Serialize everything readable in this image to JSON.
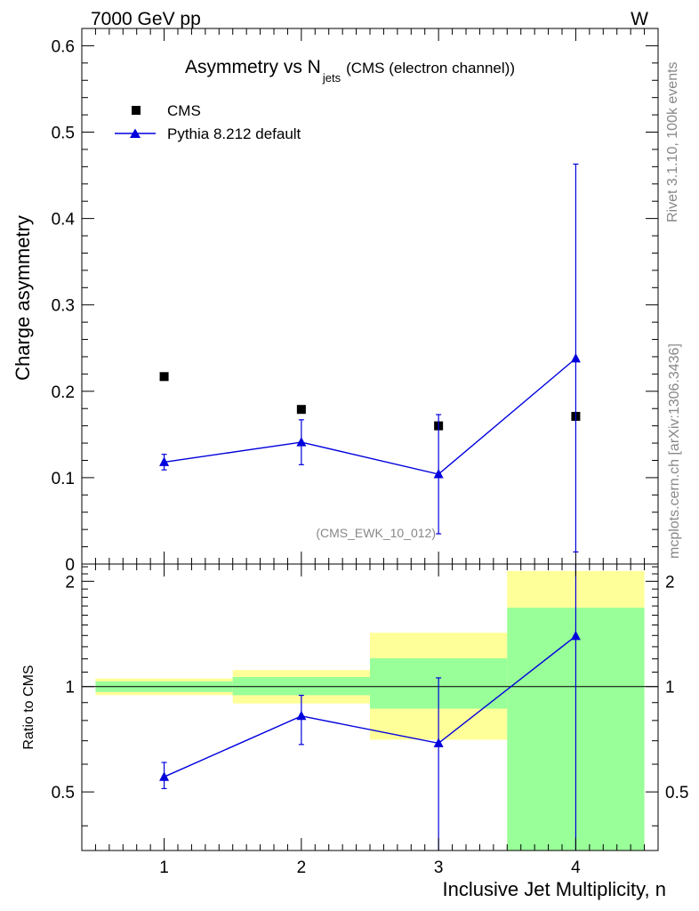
{
  "header": {
    "energy_label": "7000 GeV pp",
    "process_label": "W"
  },
  "side_labels": {
    "rivet": "Rivet 3.1.10,  100k events",
    "mcplots": "mcplots.cern.ch [arXiv:1306.3436]"
  },
  "chart_data": [
    {
      "type": "scatter",
      "panel": "main",
      "title_main": "Asymmetry vs N",
      "title_sub": "jets",
      "title_suffix": "(CMS (electron channel))",
      "ylabel": "Charge asymmetry",
      "xlim": [
        0.4,
        4.6
      ],
      "ylim": [
        0,
        0.62
      ],
      "yticks": [
        0,
        0.1,
        0.2,
        0.3,
        0.4,
        0.5,
        0.6
      ],
      "ytick_labels": [
        "0",
        "0.1",
        "0.2",
        "0.3",
        "0.4",
        "0.5",
        "0.6"
      ],
      "analysis_label": "(CMS_EWK_10_012)",
      "legend_position": "top-left",
      "series": [
        {
          "name": "CMS",
          "marker": "square",
          "color": "#000000",
          "x": [
            1,
            2,
            3,
            4
          ],
          "y": [
            0.217,
            0.179,
            0.16,
            0.171
          ]
        },
        {
          "name": "Pythia 8.212 default",
          "marker": "triangle",
          "color": "#0000dd",
          "x": [
            1,
            2,
            3,
            4
          ],
          "y": [
            0.118,
            0.141,
            0.104,
            0.238
          ],
          "err_low": [
            0.009,
            0.026,
            0.069,
            0.224
          ],
          "err_high": [
            0.009,
            0.026,
            0.069,
            0.225
          ]
        }
      ]
    },
    {
      "type": "scatter",
      "panel": "ratio",
      "ylabel": "Ratio to CMS",
      "xlabel": "Inclusive Jet Multiplicity, n",
      "xlim": [
        0.4,
        4.6
      ],
      "ylim": [
        0.34,
        2.24
      ],
      "xticks": [
        1,
        2,
        3,
        4
      ],
      "xtick_labels": [
        "1",
        "2",
        "3",
        "4"
      ],
      "yticks": [
        0.5,
        1,
        2
      ],
      "ytick_labels": [
        "0.5",
        "1",
        "2"
      ],
      "reference_line": 1,
      "bands": [
        {
          "x_low": 0.5,
          "x_high": 1.5,
          "yellow": [
            0.945,
            1.055
          ],
          "green": [
            0.965,
            1.035
          ]
        },
        {
          "x_low": 1.5,
          "x_high": 2.5,
          "yellow": [
            0.895,
            1.115
          ],
          "green": [
            0.945,
            1.065
          ]
        },
        {
          "x_low": 2.5,
          "x_high": 3.5,
          "yellow": [
            0.705,
            1.425
          ],
          "green": [
            0.865,
            1.205
          ]
        },
        {
          "x_low": 3.5,
          "x_high": 4.5,
          "yellow": [
            0.34,
            2.14
          ],
          "green": [
            0.34,
            1.68
          ]
        }
      ],
      "series": [
        {
          "name": "Pythia 8.212 default / CMS",
          "marker": "triangle",
          "color": "#0000dd",
          "x": [
            1,
            2,
            3,
            4
          ],
          "y": [
            0.552,
            0.824,
            0.689,
            1.395
          ],
          "err_low": [
            0.041,
            0.141,
            0.35,
            1.06
          ],
          "err_high": [
            0.055,
            0.12,
            0.37,
            0.85
          ]
        }
      ]
    }
  ]
}
